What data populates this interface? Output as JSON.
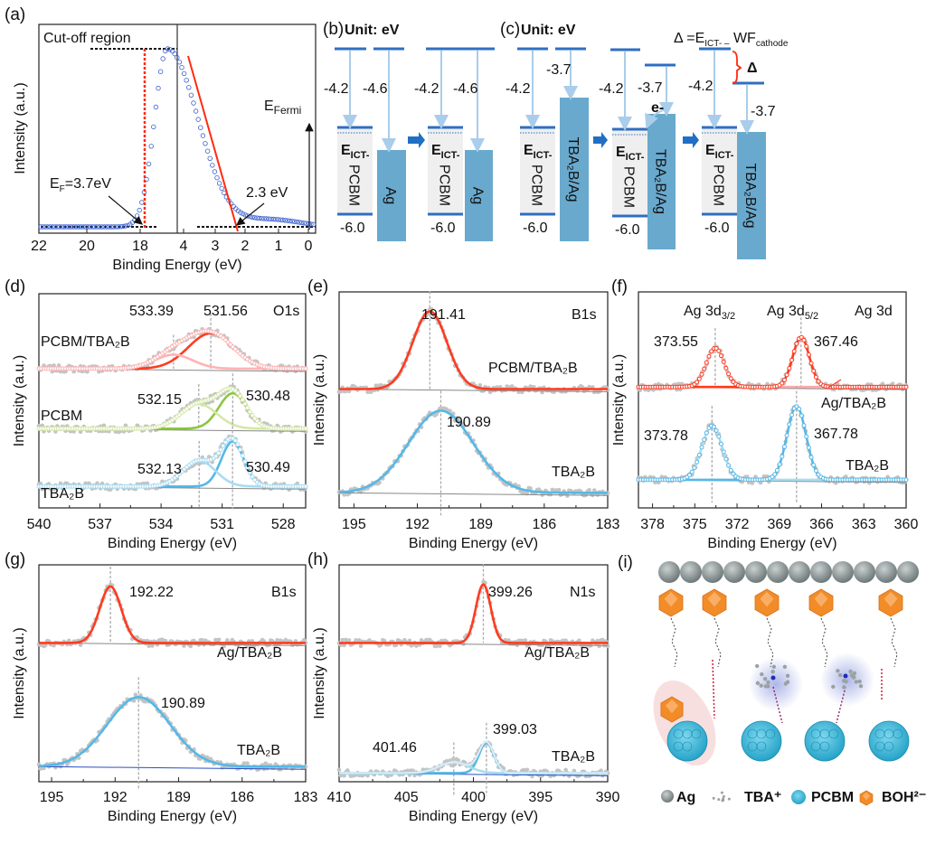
{
  "chart_data": [
    {
      "panel": "a",
      "type": "scatter",
      "label": "(a)",
      "xlabel": "Binding Energy (eV)",
      "ylabel": "Intensity (a.u.)",
      "xticks": [
        "22",
        "20",
        "18",
        "4",
        "3",
        "2",
        "1",
        "0"
      ],
      "axis_break": true,
      "marker_color": "#3a5fcd",
      "fit_color": "#ff2a10",
      "annotations": {
        "cutoff": "Cut-off region",
        "ef": {
          "base": "E",
          "sub": "F",
          "tail": "=3.7eV"
        },
        "onset": "2.3 eV",
        "efermi": {
          "base": "E",
          "sub": "Fermi"
        }
      }
    },
    {
      "panel": "d",
      "type": "line",
      "label": "(d)",
      "core": "O1s",
      "xlabel": "Binding Energy (eV)",
      "ylabel": "Intensity (a.u.)",
      "xlim": [
        540,
        526.9
      ],
      "xticks": [
        540,
        537,
        534,
        531,
        528
      ],
      "envelope_markers": true,
      "spectra": [
        {
          "name": "PCBM/TBA₂B",
          "color": "#ff3b1f",
          "offset": 0.65,
          "components": [
            {
              "center": 531.56,
              "fwhm": 2.6,
              "height": 0.165,
              "color": "#ff3b1f",
              "label": "531.56"
            },
            {
              "center": 533.39,
              "fwhm": 2.2,
              "height": 0.065,
              "color": "#ffb3b3",
              "label": "533.39"
            }
          ]
        },
        {
          "name": "PCBM",
          "color": "#6cc04a",
          "offset": 0.37,
          "components": [
            {
              "center": 530.48,
              "fwhm": 1.6,
              "height": 0.165,
              "color": "#8cc63f",
              "label": "530.48"
            },
            {
              "center": 532.15,
              "fwhm": 2.1,
              "height": 0.115,
              "color": "#d4e8a8",
              "label": "532.15"
            }
          ]
        },
        {
          "name": "TBA₂B",
          "color": "#4cb3e6",
          "offset": 0.1,
          "components": [
            {
              "center": 530.49,
              "fwhm": 1.3,
              "height": 0.21,
              "color": "#55b8e8",
              "label": "530.49"
            },
            {
              "center": 532.13,
              "fwhm": 1.9,
              "height": 0.12,
              "color": "#a8dcf2",
              "label": "532.13"
            }
          ]
        }
      ]
    },
    {
      "panel": "e",
      "type": "line",
      "label": "(e)",
      "core": "B1s",
      "xlabel": "Binding Energy (eV)",
      "ylabel": "Intensity (a.u.)",
      "xlim": [
        195.7,
        183
      ],
      "xticks": [
        195,
        192,
        189,
        186,
        183
      ],
      "envelope_markers": false,
      "spectra": [
        {
          "name": "PCBM/TBA₂B",
          "color": "#ff3b1f",
          "offset": 0.55,
          "components": [
            {
              "center": 191.41,
              "fwhm": 1.9,
              "height": 0.36,
              "color": "#ff3b1f",
              "label": "191.41"
            }
          ]
        },
        {
          "name": "TBA₂B",
          "color": "#4cb3e6",
          "offset": 0.07,
          "components": [
            {
              "center": 190.89,
              "fwhm": 3.6,
              "height": 0.38,
              "color": "#55b8e8",
              "label": "190.89"
            }
          ]
        }
      ]
    },
    {
      "panel": "f",
      "type": "line",
      "label": "(f)",
      "core": "Ag 3d",
      "peak_names": [
        {
          "base": "Ag 3d",
          "sub": "3/2"
        },
        {
          "base": "Ag 3d",
          "sub": "5/2"
        }
      ],
      "xlabel": "Binding Energy (eV)",
      "ylabel": "Intensity (a.u.)",
      "xlim": [
        379,
        360
      ],
      "xticks": [
        378,
        375,
        372,
        369,
        366,
        363,
        360
      ],
      "envelope_markers": true,
      "spectra": [
        {
          "name": "Ag/TBA₂B",
          "color": "#ff3b1f",
          "offset": 0.56,
          "components": [
            {
              "center": 373.55,
              "fwhm": 1.5,
              "height": 0.18,
              "color": "#ffaaaa",
              "label": "373.55"
            },
            {
              "center": 367.46,
              "fwhm": 1.4,
              "height": 0.23,
              "color": "#ff3b1f",
              "label": "367.46"
            }
          ]
        },
        {
          "name": "TBA₂B",
          "color": "#4cb3e6",
          "offset": 0.13,
          "components": [
            {
              "center": 373.78,
              "fwhm": 1.7,
              "height": 0.25,
              "color": "#a8dcf2",
              "label": "373.78"
            },
            {
              "center": 367.78,
              "fwhm": 1.6,
              "height": 0.34,
              "color": "#55b8e8",
              "label": "367.78"
            }
          ]
        }
      ]
    },
    {
      "panel": "g",
      "type": "line",
      "label": "(g)",
      "core": "B1s",
      "xlabel": "Binding Energy (eV)",
      "ylabel": "Intensity (a.u.)",
      "xlim": [
        195.6,
        183
      ],
      "xticks": [
        195,
        192,
        189,
        186,
        183
      ],
      "envelope_markers": false,
      "spectra": [
        {
          "name": "Ag/TBA₂B",
          "color": "#ff3b1f",
          "offset": 0.64,
          "components": [
            {
              "center": 192.22,
              "fwhm": 1.2,
              "height": 0.26,
              "color": "#ff3b1f",
              "label": "192.22"
            }
          ]
        },
        {
          "name": "TBA₂B",
          "color": "#4cb3e6",
          "offset": 0.07,
          "components": [
            {
              "center": 190.89,
              "fwhm": 3.5,
              "height": 0.32,
              "color": "#55b8e8",
              "label": "190.89"
            }
          ]
        }
      ]
    },
    {
      "panel": "h",
      "type": "line",
      "label": "(h)",
      "core": "N1s",
      "xlabel": "Binding Energy (eV)",
      "ylabel": "Intensity (a.u.)",
      "xlim": [
        410,
        390
      ],
      "xticks": [
        410,
        405,
        400,
        395,
        390
      ],
      "envelope_markers": false,
      "spectra": [
        {
          "name": "Ag/TBA₂B",
          "color": "#ff3b1f",
          "offset": 0.64,
          "components": [
            {
              "center": 399.26,
              "fwhm": 1.3,
              "height": 0.27,
              "color": "#ff3b1f",
              "label": "399.26"
            }
          ]
        },
        {
          "name": "TBA₂B",
          "color": "#4cb3e6",
          "offset": 0.04,
          "components": [
            {
              "center": 399.03,
              "fwhm": 1.3,
              "height": 0.14,
              "color": "#55b8e8",
              "label": "399.03"
            },
            {
              "center": 401.46,
              "fwhm": 2.6,
              "height": 0.05,
              "color": "#a8dcf2",
              "label": "401.46"
            }
          ]
        }
      ]
    }
  ],
  "diagrams": {
    "b": {
      "label": "(b)",
      "unit": "Unit: eV"
    },
    "c": {
      "label": "(c)",
      "unit": "Unit: eV",
      "formula": {
        "lhs": "Δ =E",
        "sub1": "ICT- –",
        "mid": " WF",
        "sub2": "cathode"
      },
      "delta": "Δ",
      "electron": "e-"
    },
    "level": {
      "base": "E",
      "sub": "ICT-"
    },
    "units": [
      {
        "left": {
          "name": "PCBM",
          "top": "-4.2",
          "bottom": "-6.0"
        },
        "right": {
          "name": "Ag",
          "value": "-4.6"
        }
      },
      {
        "left": {
          "name": "PCBM",
          "top": "-4.2",
          "bottom": "-6.0"
        },
        "right": {
          "name": "Ag",
          "value": "-4.6"
        }
      },
      {
        "left": {
          "name": "PCBM",
          "top": "-4.2",
          "bottom": "-6.0"
        },
        "right": {
          "name": "TBA₂B/Ag",
          "value": "-3.7"
        }
      },
      {
        "left": {
          "name": "PCBM",
          "top": "-4.2",
          "bottom": "-6.0"
        },
        "right": {
          "name": "TBA₂B/Ag",
          "value": "-3.7"
        }
      },
      {
        "left": {
          "name": "PCBM",
          "top": "-4.2",
          "bottom": "-6.0"
        },
        "right": {
          "name": "TBA₂B/Ag",
          "value": "-3.7"
        }
      }
    ],
    "colors": {
      "level": "#2f6fc0",
      "arrow": "#a9cdea",
      "metal": "#69a9cd",
      "organic": "#efefef",
      "delta": "#ff2a10"
    }
  },
  "schematic": {
    "label": "(i)",
    "legend": [
      "Ag",
      "TBA⁺",
      "PCBM",
      "BOH²⁻"
    ],
    "colors": {
      "ag": "#8a9494",
      "cluster": "#f28c28",
      "fullerene": "#2fb6d8"
    }
  }
}
